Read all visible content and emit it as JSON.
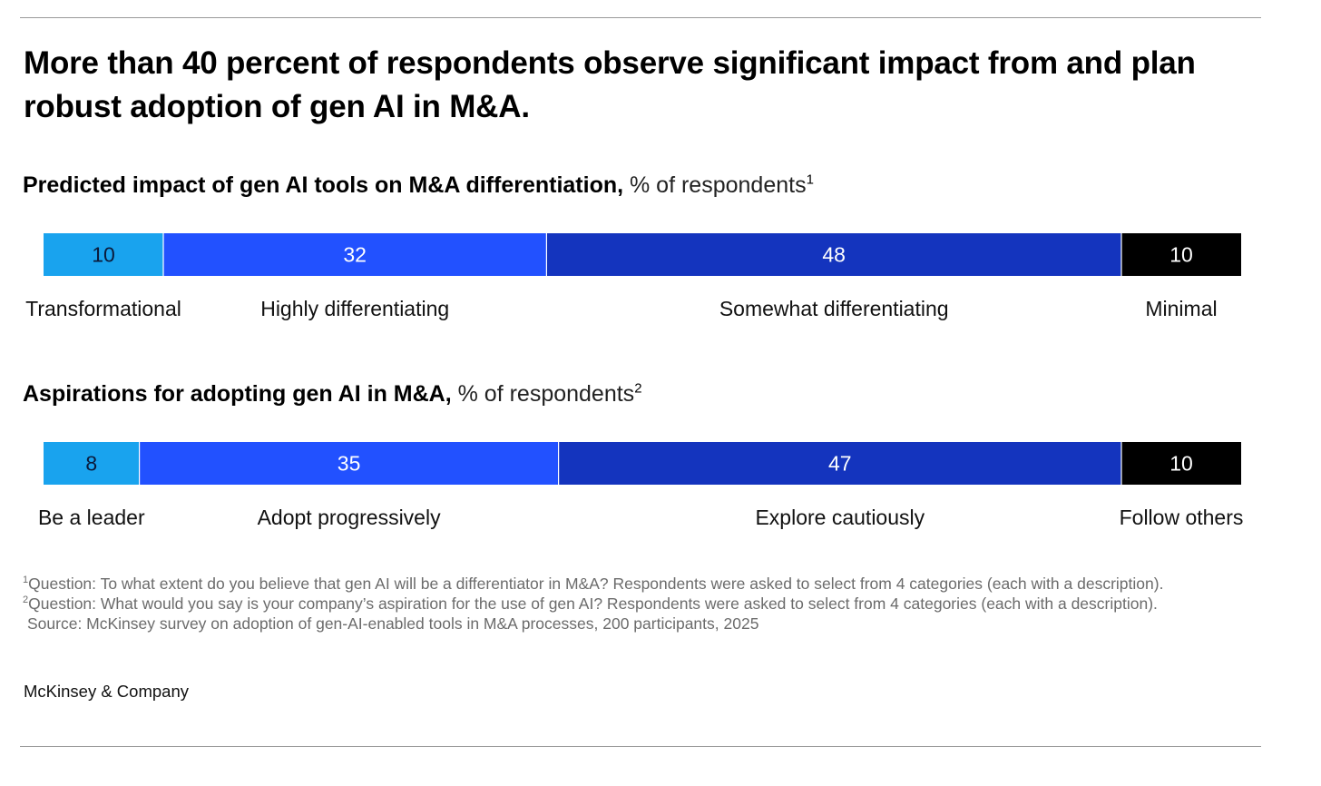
{
  "title": "More than 40 percent of respondents observe significant impact from and plan robust adoption of gen AI in M&A.",
  "chart_data": [
    {
      "type": "bar",
      "orientation": "horizontal-stacked-100",
      "title_bold": "Predicted impact of gen AI tools on M&A differentiation,",
      "title_unit": " % of respondents",
      "footnote_marker": "1",
      "categories": [
        "Transformational",
        "Highly differentiating",
        "Somewhat differentiating",
        "Minimal"
      ],
      "values": [
        10,
        32,
        48,
        10
      ],
      "colors": [
        "#19a3ee",
        "#2251ff",
        "#1434be",
        "#000000"
      ],
      "label_colors": [
        "#0b1a3a",
        "#ffffff",
        "#ffffff",
        "#ffffff"
      ],
      "xlim": [
        0,
        100
      ]
    },
    {
      "type": "bar",
      "orientation": "horizontal-stacked-100",
      "title_bold": "Aspirations for adopting gen AI in M&A,",
      "title_unit": " % of respondents",
      "footnote_marker": "2",
      "categories": [
        "Be a leader",
        "Adopt progressively",
        "Explore cautiously",
        "Follow others"
      ],
      "values": [
        8,
        35,
        47,
        10
      ],
      "colors": [
        "#19a3ee",
        "#2251ff",
        "#1434be",
        "#000000"
      ],
      "label_colors": [
        "#0b1a3a",
        "#ffffff",
        "#ffffff",
        "#ffffff"
      ],
      "xlim": [
        0,
        100
      ]
    }
  ],
  "footnotes": {
    "note1_marker": "1",
    "note1": "Question: To what extent do you believe that gen AI will be a differentiator in M&A? Respondents were asked to select from 4 categories (each with a description).",
    "note2_marker": "2",
    "note2": "Question: What would you say is your company’s aspiration for the use of gen AI? Respondents were asked to select from 4 categories (each with a description).",
    "source": "Source: McKinsey survey on adoption of gen-AI-enabled tools in M&A processes, 200 participants, 2025"
  },
  "brand": "McKinsey & Company"
}
